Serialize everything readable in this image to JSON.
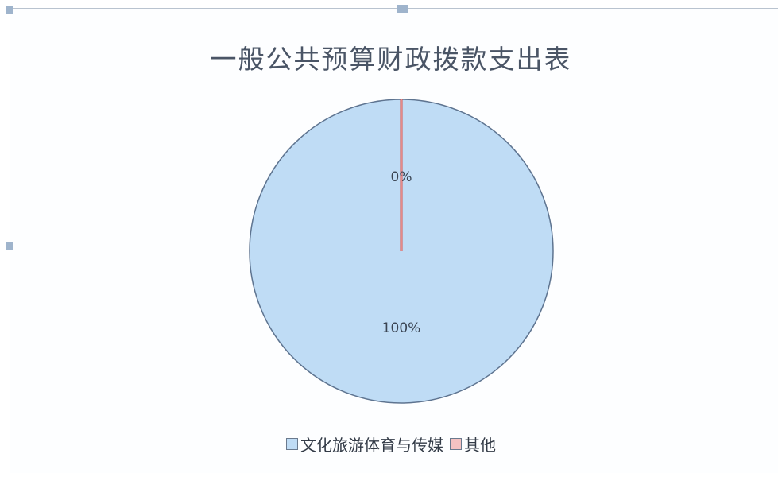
{
  "chart_data": {
    "type": "pie",
    "title": "一般公共预算财政拨款支出表",
    "slices": [
      {
        "label": "文化旅游体育与传媒",
        "value": 100,
        "data_label": "100%",
        "color": "#bfdcf5"
      },
      {
        "label": "其他",
        "value": 0,
        "data_label": "0%",
        "color": "#f4c2c2"
      }
    ],
    "legend_position": "bottom"
  },
  "colors": {
    "pie_outline": "#5e7490",
    "zero_slice_line": "#d9534f"
  }
}
